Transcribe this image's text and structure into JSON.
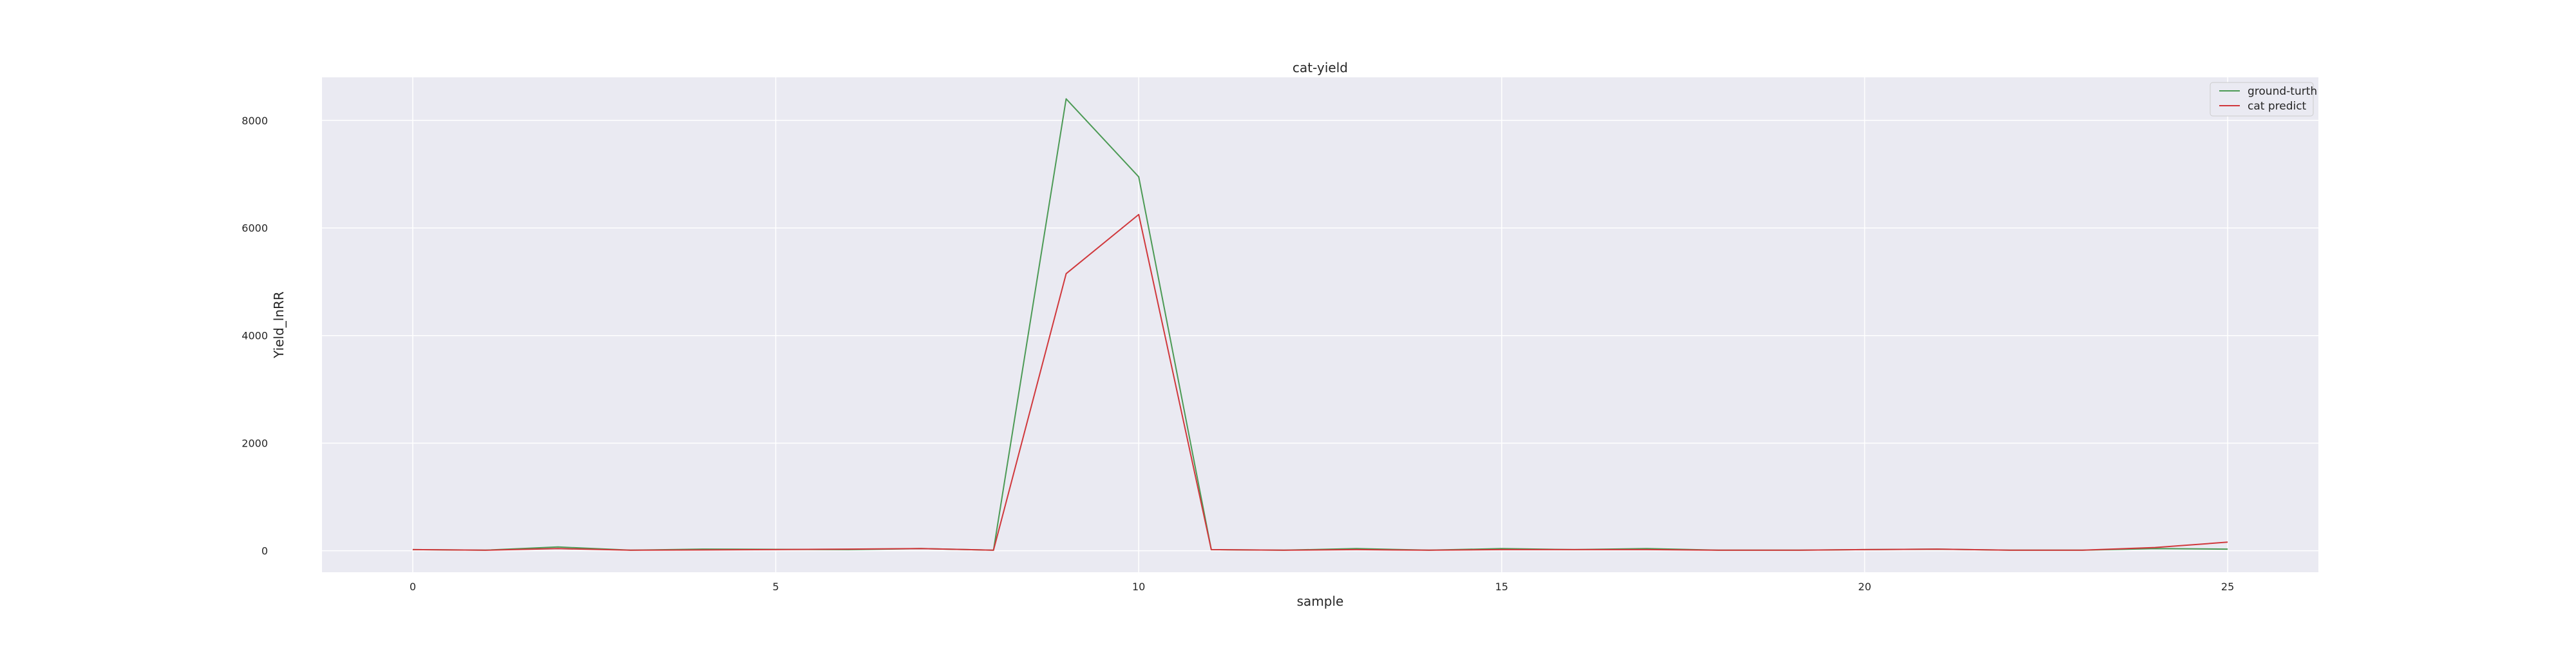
{
  "chart_data": {
    "type": "line",
    "title": "cat-yield",
    "xlabel": "sample",
    "ylabel": "Yield_lnRR",
    "x": [
      0,
      1,
      2,
      3,
      4,
      5,
      6,
      7,
      8,
      9,
      10,
      11,
      12,
      13,
      14,
      15,
      16,
      17,
      18,
      19,
      20,
      21,
      22,
      23,
      24,
      25
    ],
    "xlim": [
      -1.25,
      26.25
    ],
    "ylim": [
      -400,
      8800
    ],
    "xticks": [
      0,
      5,
      10,
      15,
      20,
      25
    ],
    "yticks": [
      0,
      2000,
      4000,
      6000,
      8000
    ],
    "grid": true,
    "legend_position": "top-right",
    "series": [
      {
        "name": "ground-turth",
        "color": "#4c9a55",
        "values": [
          20,
          10,
          70,
          10,
          30,
          25,
          20,
          40,
          10,
          8400,
          6950,
          20,
          10,
          40,
          10,
          40,
          20,
          40,
          10,
          10,
          20,
          30,
          10,
          10,
          40,
          30
        ]
      },
      {
        "name": "cat predict",
        "color": "#d0383c",
        "values": [
          20,
          10,
          40,
          10,
          15,
          20,
          30,
          40,
          10,
          5150,
          6250,
          20,
          10,
          20,
          10,
          20,
          20,
          20,
          10,
          10,
          20,
          30,
          10,
          10,
          60,
          160
        ]
      }
    ]
  },
  "colors": {
    "plot_background": "#eaeaf2",
    "grid": "#ffffff"
  }
}
